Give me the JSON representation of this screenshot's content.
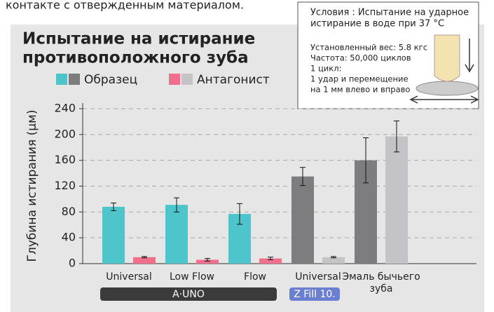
{
  "top_text": "контакте с отвержденным материалом.",
  "chart_data": {
    "type": "bar",
    "title": [
      "Испытание на истирание",
      "противоположного зуба"
    ],
    "y_label": "Глубина истирания (μм)",
    "categories": [
      "Universal",
      "Low Flow",
      "Flow",
      "Universal",
      [
        "Эмаль бычьего",
        "зуба"
      ]
    ],
    "groups": [
      {
        "label": "A·UNO",
        "color": "#3b3b3b",
        "count": 3
      },
      {
        "label": "Z Fill 10.",
        "color": "#6a7fd0",
        "count": 1
      }
    ],
    "series": [
      {
        "name": "Образец",
        "colors": [
          "#4ec4cb",
          "#4ec4cb",
          "#4ec4cb",
          "#7d7d80",
          "#7d7d80"
        ],
        "values": [
          88,
          91,
          77,
          135,
          160
        ],
        "errors": [
          6,
          11,
          16,
          14,
          35
        ]
      },
      {
        "name": "Антагонист",
        "colors": [
          "#ef6f8d",
          "#ef6f8d",
          "#ef6f8d",
          "#c4c4c6",
          "#c4c4c6"
        ],
        "values": [
          10,
          6,
          8,
          10,
          197
        ],
        "errors": [
          1,
          2,
          2,
          1,
          24
        ]
      }
    ],
    "ylim": [
      0,
      240
    ],
    "yticks": [
      0,
      40,
      80,
      120,
      160,
      200,
      240
    ],
    "grid": true,
    "inset": {
      "title": [
        "Условия : Испытание на ударное",
        "истирание в воде при 37 °C"
      ],
      "lines": [
        "Установленный вес: 5.8 кгс",
        "Частота: 50,000 циклов",
        "1 цикл:",
        "1 удар и перемещение",
        "на 1 мм влево и вправо"
      ]
    }
  }
}
